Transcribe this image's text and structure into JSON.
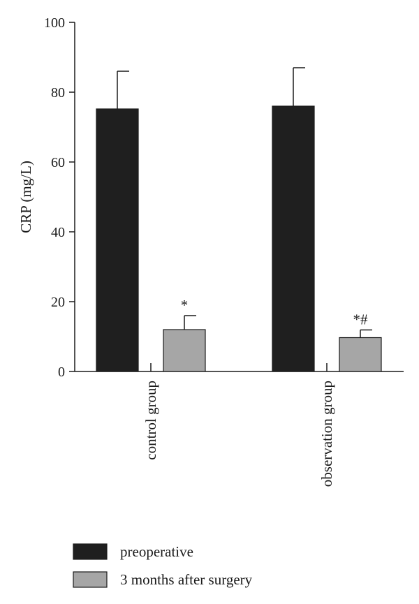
{
  "chart_data": {
    "type": "bar",
    "categories": [
      "control group",
      "observation group"
    ],
    "series": [
      {
        "name": "preoperative",
        "values": [
          75.2,
          76.0
        ],
        "errors": [
          10.8,
          11.0
        ],
        "color": "#1f1f1f"
      },
      {
        "name": "3 months after surgery",
        "values": [
          12.0,
          9.7
        ],
        "errors": [
          4.0,
          2.2
        ],
        "color": "#a6a6a6"
      }
    ],
    "annotations": [
      {
        "category": "control group",
        "series": "3 months after surgery",
        "text": "*"
      },
      {
        "category": "observation group",
        "series": "3 months after surgery",
        "text": "*#"
      }
    ],
    "ylabel": "CRP (mg/L)",
    "ylim": [
      0,
      100
    ],
    "yticks": [
      0,
      20,
      40,
      60,
      80,
      100
    ],
    "grid": false,
    "legend_position": "bottom-left"
  }
}
